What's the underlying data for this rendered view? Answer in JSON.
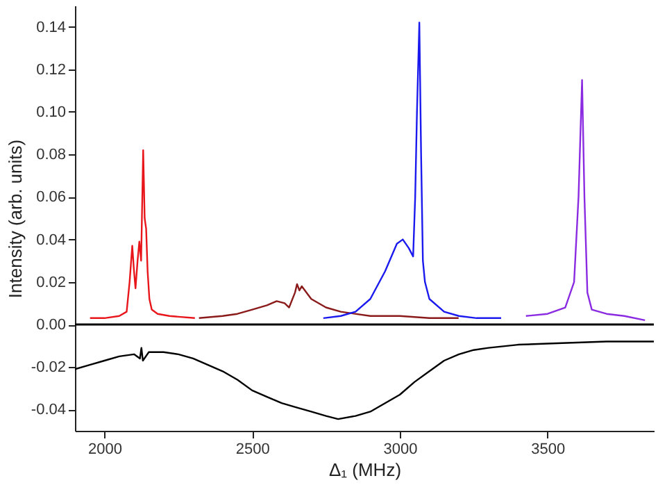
{
  "chart_data": {
    "type": "line",
    "xlabel": "Δ₁ (MHz)",
    "ylabel": "Intensity (arb. units)",
    "xlim": [
      1900,
      3860
    ],
    "ylim": [
      -0.05,
      0.15
    ],
    "xticks": [
      2000,
      2500,
      3000,
      3500
    ],
    "yticks": [
      {
        "value": -0.04,
        "label": "-0.04"
      },
      {
        "value": -0.02,
        "label": "-0.02"
      },
      {
        "value": 0,
        "label": "0.00"
      },
      {
        "value": 0.02,
        "label": "0.02"
      },
      {
        "value": 0.04,
        "label": "0.04"
      },
      {
        "value": 0.06,
        "label": "0.06"
      },
      {
        "value": 0.08,
        "label": "0.08"
      },
      {
        "value": 0.1,
        "label": "0.10"
      },
      {
        "value": 0.12,
        "label": "0.12"
      },
      {
        "value": 0.14,
        "label": "0.14"
      }
    ],
    "grid": false,
    "ref_lines": [
      {
        "axis": "y",
        "value": 0,
        "color": "#000000"
      }
    ],
    "series": [
      {
        "color": "#e8161b",
        "x": [
          1951,
          2000,
          2050,
          2075,
          2085,
          2094,
          2100,
          2105,
          2112,
          2118,
          2124,
          2131,
          2136,
          2141,
          2146,
          2152,
          2160,
          2180,
          2220,
          2306
        ],
        "values": [
          0.003,
          0.003,
          0.004,
          0.006,
          0.02,
          0.037,
          0.025,
          0.017,
          0.03,
          0.039,
          0.03,
          0.082,
          0.05,
          0.045,
          0.025,
          0.012,
          0.007,
          0.005,
          0.004,
          0.003
        ]
      },
      {
        "color": "#8b1a1a",
        "x": [
          2320,
          2400,
          2450,
          2500,
          2550,
          2583,
          2610,
          2625,
          2645,
          2652,
          2660,
          2668,
          2700,
          2750,
          2800,
          2900,
          3000,
          3100,
          3199
        ],
        "values": [
          0.003,
          0.004,
          0.005,
          0.007,
          0.009,
          0.011,
          0.01,
          0.008,
          0.015,
          0.019,
          0.016,
          0.018,
          0.012,
          0.008,
          0.006,
          0.004,
          0.004,
          0.003,
          0.003
        ]
      },
      {
        "color": "#1a1aee",
        "x": [
          2741,
          2800,
          2850,
          2900,
          2950,
          2990,
          3010,
          3030,
          3045,
          3052,
          3058,
          3066,
          3072,
          3078,
          3085,
          3100,
          3150,
          3200,
          3260,
          3343
        ],
        "values": [
          0.003,
          0.004,
          0.006,
          0.012,
          0.025,
          0.038,
          0.04,
          0.036,
          0.032,
          0.06,
          0.1,
          0.142,
          0.08,
          0.03,
          0.02,
          0.012,
          0.006,
          0.004,
          0.003,
          0.003
        ]
      },
      {
        "color": "#8a2be2",
        "x": [
          3427,
          3500,
          3560,
          3590,
          3605,
          3617,
          3625,
          3635,
          3650,
          3700,
          3760,
          3830
        ],
        "values": [
          0.004,
          0.005,
          0.008,
          0.02,
          0.06,
          0.115,
          0.06,
          0.015,
          0.007,
          0.005,
          0.004,
          0.002
        ]
      },
      {
        "color": "#000000",
        "x": [
          1900,
          1950,
          2000,
          2050,
          2100,
          2120,
          2125,
          2130,
          2150,
          2200,
          2250,
          2300,
          2350,
          2400,
          2450,
          2500,
          2550,
          2600,
          2650,
          2700,
          2750,
          2791,
          2850,
          2900,
          2950,
          3000,
          3050,
          3100,
          3150,
          3200,
          3250,
          3300,
          3400,
          3500,
          3600,
          3700,
          3860
        ],
        "values": [
          -0.021,
          -0.019,
          -0.017,
          -0.015,
          -0.014,
          -0.016,
          -0.011,
          -0.017,
          -0.013,
          -0.013,
          -0.014,
          -0.016,
          -0.019,
          -0.022,
          -0.026,
          -0.031,
          -0.034,
          -0.037,
          -0.039,
          -0.041,
          -0.043,
          -0.0445,
          -0.043,
          -0.041,
          -0.037,
          -0.033,
          -0.027,
          -0.022,
          -0.017,
          -0.014,
          -0.012,
          -0.011,
          -0.0095,
          -0.009,
          -0.0085,
          -0.008,
          -0.008
        ]
      }
    ]
  }
}
